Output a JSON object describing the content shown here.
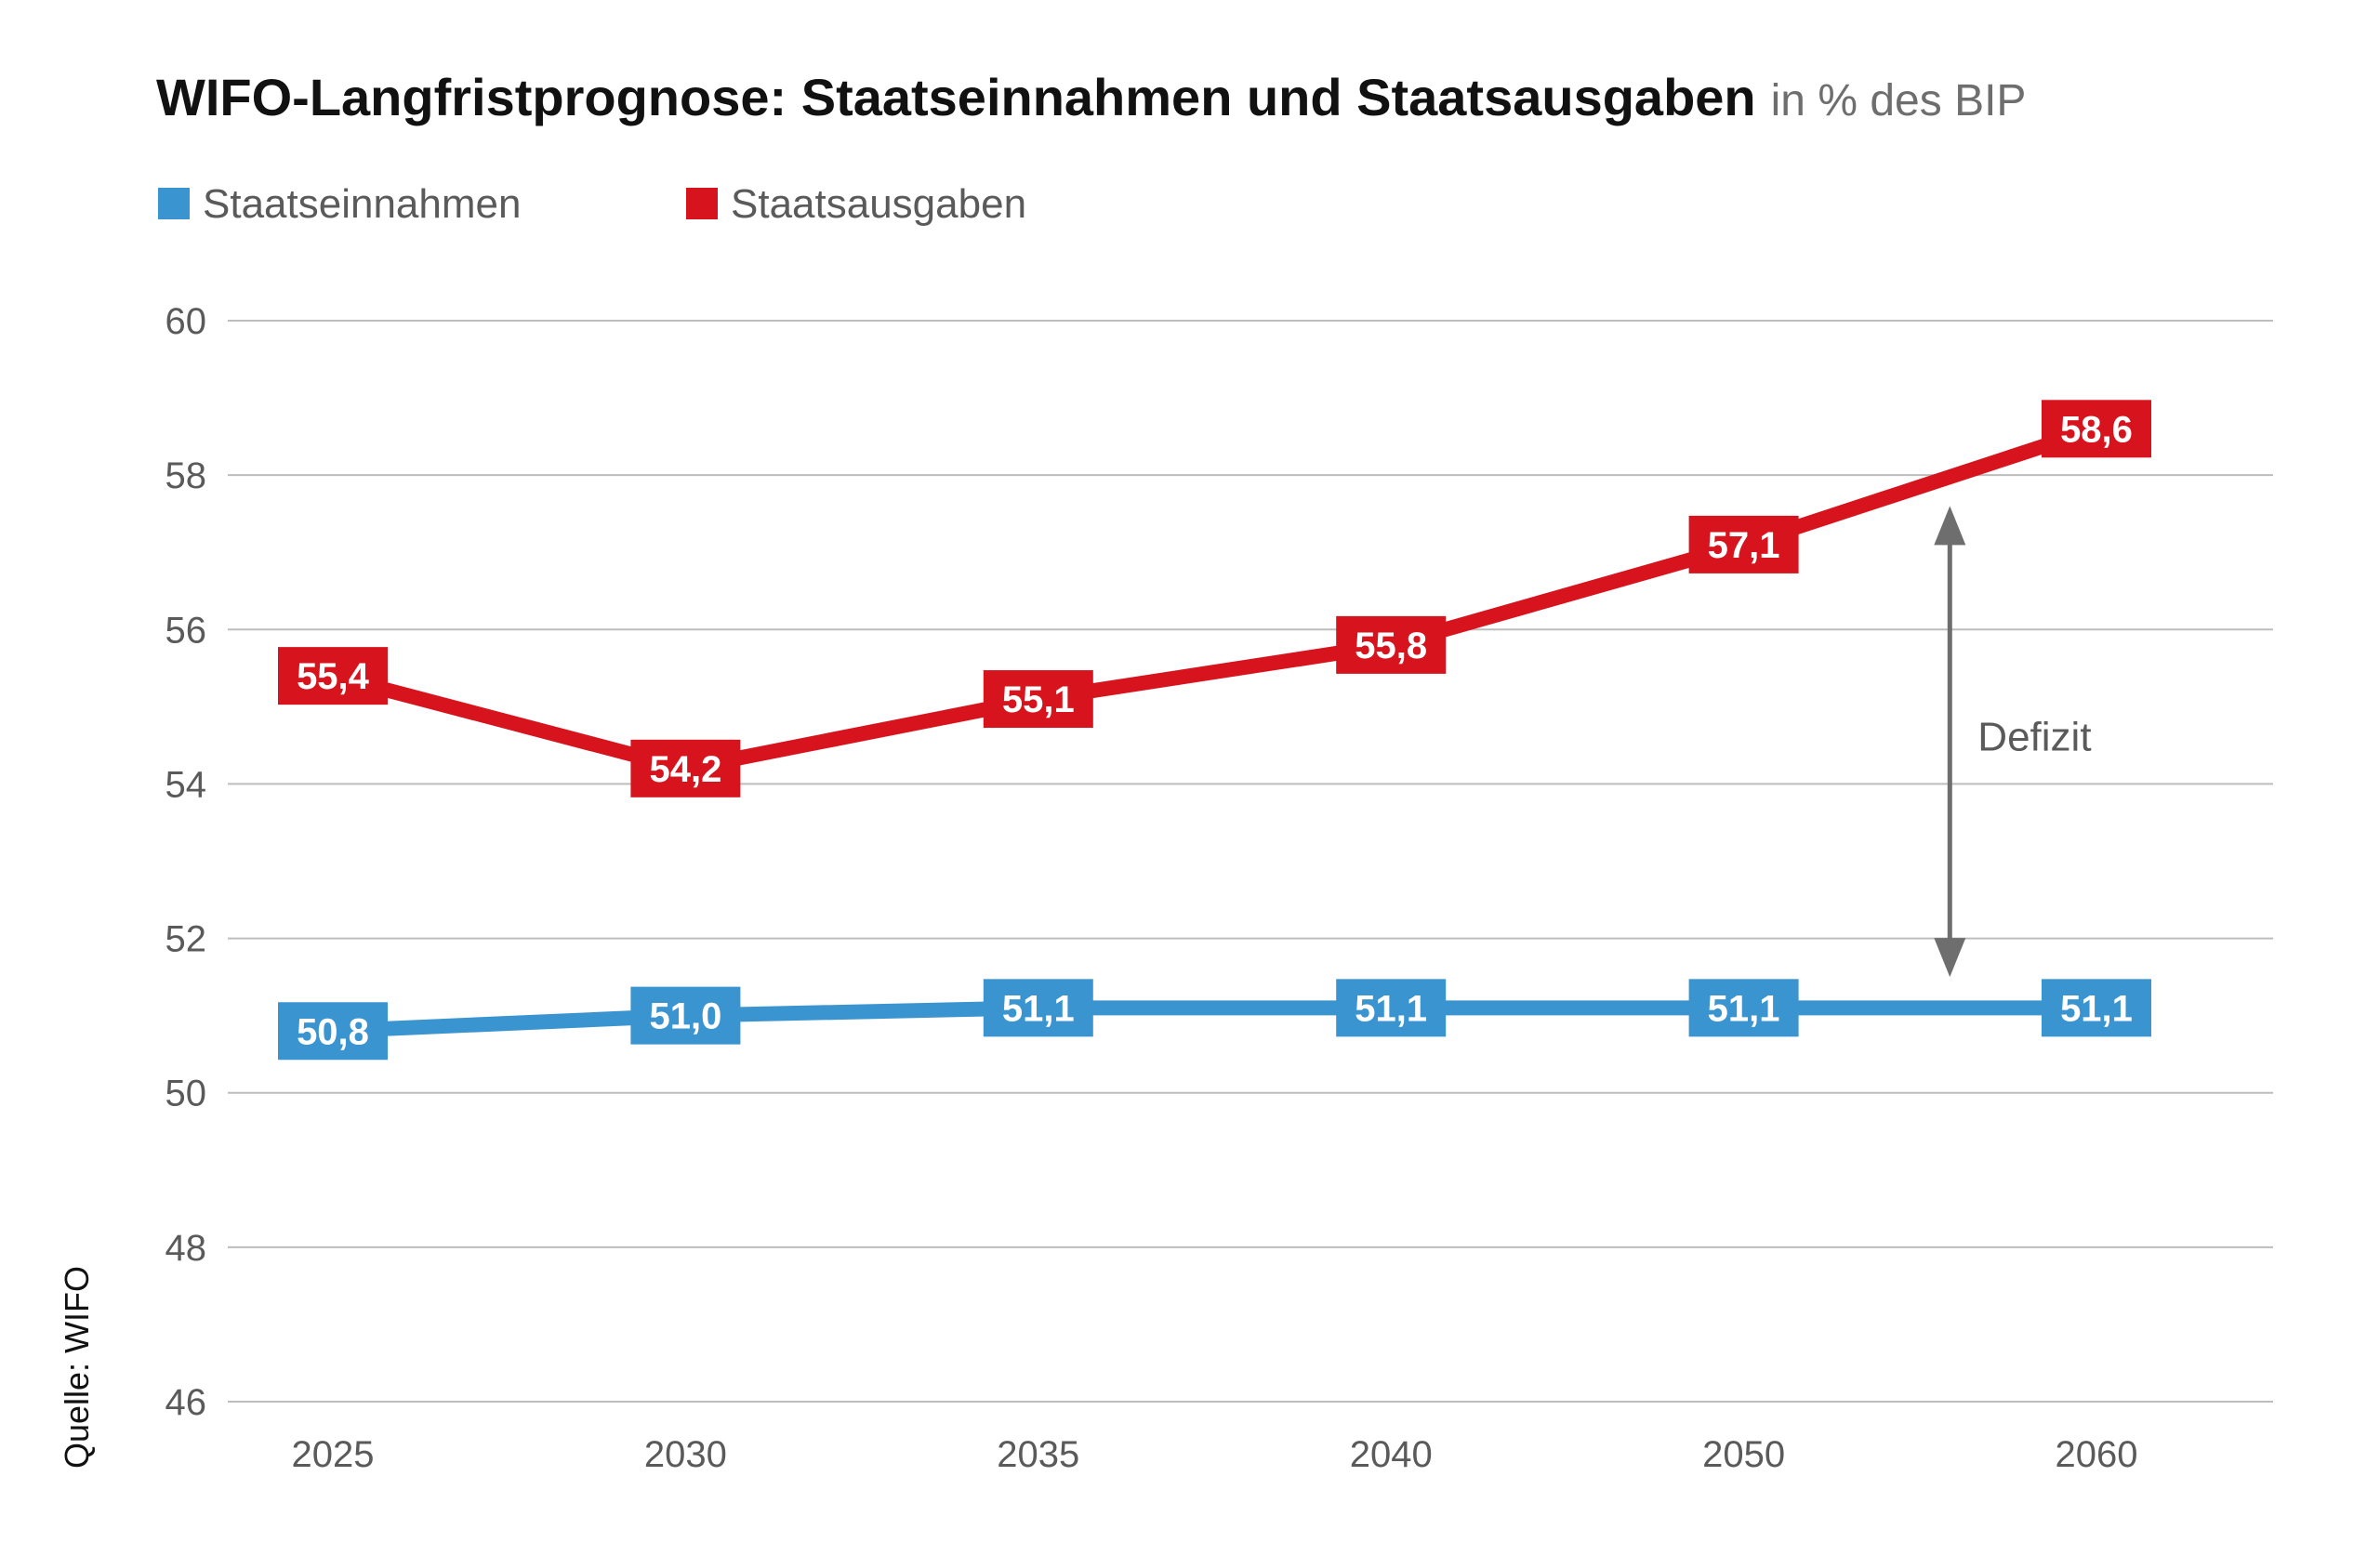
{
  "chart_data": {
    "type": "line",
    "title": "WIFO-Langfristprognose: Staatseinnahmen und Staatsausgaben",
    "subtitle": "in % des BIP",
    "source": "Quelle: WIFO",
    "categories": [
      "2025",
      "2030",
      "2035",
      "2040",
      "2050",
      "2060"
    ],
    "ylim": [
      46,
      60
    ],
    "yticks": [
      46,
      48,
      50,
      52,
      54,
      56,
      58,
      60
    ],
    "grid": true,
    "legend_placement": "top-left",
    "series": [
      {
        "name": "Staatseinnahmen",
        "color": "#3a94d0",
        "values": [
          50.8,
          51.0,
          51.1,
          51.1,
          51.1,
          51.1
        ],
        "labels": [
          "50,8",
          "51,0",
          "51,1",
          "51,1",
          "51,1",
          "51,1"
        ]
      },
      {
        "name": "Staatsausgaben",
        "color": "#d7141d",
        "values": [
          55.4,
          54.2,
          55.1,
          55.8,
          57.1,
          58.6
        ],
        "labels": [
          "55,4",
          "54,2",
          "55,1",
          "55,8",
          "57,1",
          "58,6"
        ]
      }
    ],
    "annotation": {
      "text": "Defizit",
      "x_between": [
        "2050",
        "2060"
      ],
      "from": 51.5,
      "to": 57.6
    }
  },
  "colors": {
    "grid": "#bdbdbd",
    "tick_text": "#5a5a5a",
    "arrow": "#6e6e6e",
    "title": "#111111",
    "subtitle": "#6e6e6e"
  }
}
